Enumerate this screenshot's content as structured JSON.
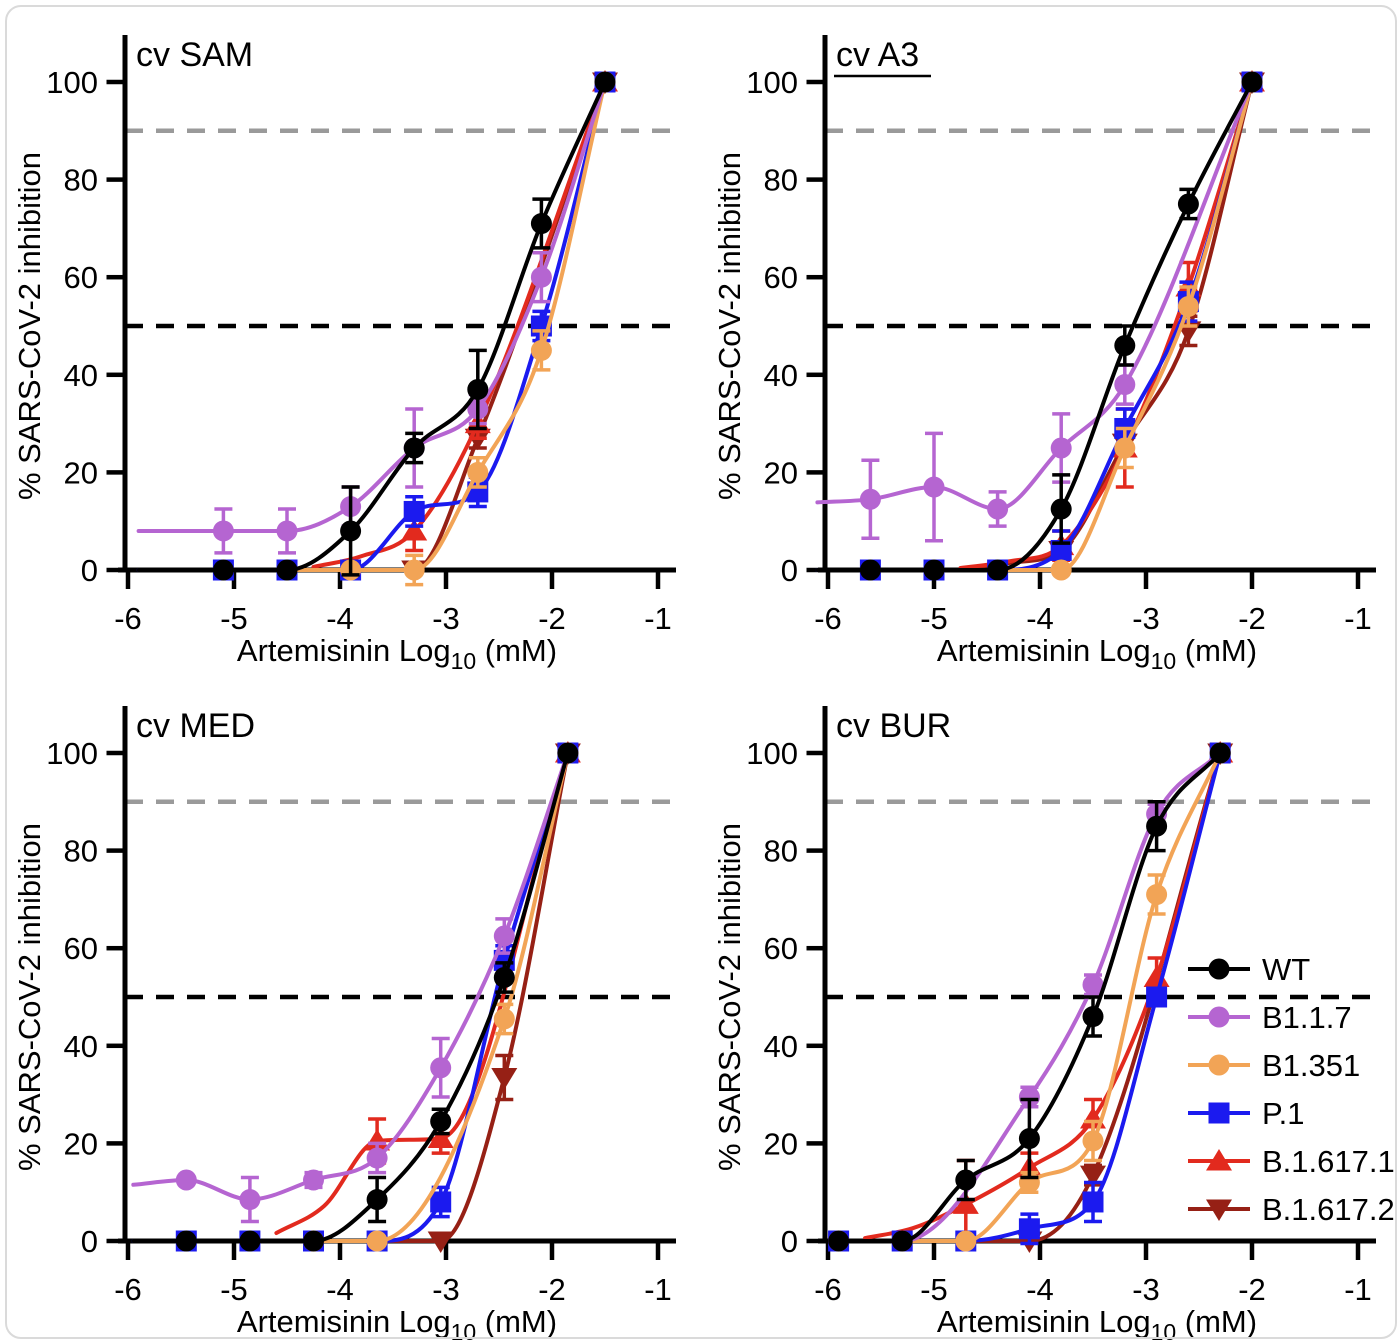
{
  "figure": {
    "background": "#ffffff",
    "frame_color": "#dadada"
  },
  "axes": {
    "x_label_main": "Artemisinin Log",
    "x_label_sub": "10",
    "x_label_unit": " (mM)",
    "y_label": "% SARS-CoV-2 inhibition",
    "x_ticks": [
      -6,
      -5,
      -4,
      -3,
      -2,
      -1
    ],
    "y_ticks": [
      0,
      20,
      40,
      60,
      80,
      100
    ],
    "x_range": [
      -6,
      -1
    ],
    "y_range": [
      0,
      107
    ],
    "grid": "off",
    "reference_lines": [
      {
        "y": 90,
        "color": "#9a9a9a",
        "style": "dashed"
      },
      {
        "y": 50,
        "color": "#000000",
        "style": "dashed"
      }
    ]
  },
  "legend": {
    "position": "inside bottom-right panel, middle right",
    "items": [
      {
        "label": "WT",
        "color": "#000000",
        "marker": "circle"
      },
      {
        "label": "B1.1.7",
        "color": "#b565d1",
        "marker": "circle"
      },
      {
        "label": "B1.351",
        "color": "#f2a456",
        "marker": "circle"
      },
      {
        "label": "P.1",
        "color": "#1b1aef",
        "marker": "square"
      },
      {
        "label": "B.1.617.1",
        "color": "#e22a1e",
        "marker": "triangle-up"
      },
      {
        "label": "B.1.617.2",
        "color": "#962015",
        "marker": "triangle-down"
      }
    ]
  },
  "chart_data": [
    {
      "type": "line",
      "title": "cv SAM",
      "title_underline": false,
      "x": [
        -5.1,
        -4.5,
        -3.9,
        -3.3,
        -2.7,
        -2.1,
        -1.5
      ],
      "series": [
        {
          "name": "WT",
          "color": "#000000",
          "marker": "circle",
          "bottom": 0,
          "values": [
            0,
            0,
            8,
            25,
            37,
            71,
            100
          ],
          "errors": [
            0,
            0,
            9,
            3,
            8,
            5,
            0
          ]
        },
        {
          "name": "B1.1.7",
          "color": "#b565d1",
          "marker": "circle",
          "bottom": 8,
          "values": [
            8,
            8,
            13,
            25,
            33,
            60,
            100
          ],
          "errors": [
            4.5,
            4.5,
            4,
            8,
            3,
            5,
            0
          ]
        },
        {
          "name": "B1.351",
          "color": "#f2a456",
          "marker": "circle",
          "bottom": 0,
          "values": [
            null,
            null,
            0,
            0,
            20,
            45,
            100
          ],
          "errors": [
            null,
            null,
            0,
            3,
            3,
            4,
            0
          ]
        },
        {
          "name": "P.1",
          "color": "#1b1aef",
          "marker": "square",
          "bottom": 0,
          "values": [
            0,
            0,
            0,
            12,
            16,
            50,
            100
          ],
          "errors": [
            0,
            0,
            0,
            3,
            3,
            3,
            0
          ]
        },
        {
          "name": "B.1.617.1",
          "color": "#e22a1e",
          "marker": "triangle-up",
          "bottom": 0,
          "values": [
            null,
            null,
            null,
            8,
            30,
            null,
            100
          ],
          "errors": [
            null,
            null,
            null,
            4,
            3,
            null,
            0
          ]
        },
        {
          "name": "B.1.617.2",
          "color": "#962015",
          "marker": "triangle-down",
          "bottom": 0,
          "values": [
            null,
            null,
            null,
            0,
            27,
            null,
            100
          ],
          "errors": [
            null,
            null,
            null,
            0,
            2,
            null,
            0
          ]
        }
      ]
    },
    {
      "type": "line",
      "title": "cv A3",
      "title_underline": true,
      "x": [
        -5.6,
        -5.0,
        -4.4,
        -3.8,
        -3.2,
        -2.6,
        -2.0
      ],
      "series": [
        {
          "name": "WT",
          "color": "#000000",
          "marker": "circle",
          "bottom": 0,
          "values": [
            0,
            0,
            0,
            12.5,
            46,
            75,
            100
          ],
          "errors": [
            0,
            0,
            0,
            7,
            4,
            3,
            0
          ]
        },
        {
          "name": "B1.1.7",
          "color": "#b565d1",
          "marker": "circle",
          "bottom": 13.5,
          "values": [
            14.5,
            17,
            12.5,
            25,
            38,
            null,
            100
          ],
          "errors": [
            8,
            11,
            3.5,
            7,
            4,
            null,
            0
          ]
        },
        {
          "name": "B1.351",
          "color": "#f2a456",
          "marker": "circle",
          "bottom": 0,
          "values": [
            null,
            null,
            null,
            0,
            25,
            54,
            100
          ],
          "errors": [
            null,
            null,
            null,
            0,
            4,
            4,
            0
          ]
        },
        {
          "name": "P.1",
          "color": "#1b1aef",
          "marker": "square",
          "bottom": 0,
          "values": [
            0,
            0,
            0,
            4,
            29,
            55,
            100
          ],
          "errors": [
            0,
            0,
            0,
            4,
            4,
            4,
            0
          ]
        },
        {
          "name": "B.1.617.1",
          "color": "#e22a1e",
          "marker": "triangle-up",
          "bottom": 0,
          "values": [
            null,
            null,
            null,
            5,
            25,
            58,
            100
          ],
          "errors": [
            null,
            null,
            null,
            3,
            8,
            5,
            0
          ]
        },
        {
          "name": "B.1.617.2",
          "color": "#962015",
          "marker": "triangle-down",
          "bottom": 0,
          "values": [
            null,
            null,
            null,
            4,
            26,
            49,
            100
          ],
          "errors": [
            null,
            null,
            null,
            0,
            0,
            3,
            0
          ]
        }
      ]
    },
    {
      "type": "line",
      "title": "cv MED",
      "title_underline": false,
      "x": [
        -5.45,
        -4.85,
        -4.25,
        -3.65,
        -3.05,
        -2.45,
        -1.85
      ],
      "series": [
        {
          "name": "WT",
          "color": "#000000",
          "marker": "circle",
          "bottom": 0,
          "values": [
            0,
            0,
            0,
            8.5,
            24.5,
            54,
            100
          ],
          "errors": [
            0,
            0,
            0,
            4.5,
            2.5,
            3,
            0
          ]
        },
        {
          "name": "B1.1.7",
          "color": "#b565d1",
          "marker": "circle",
          "bottom": 11,
          "values": [
            12.5,
            8.5,
            12.5,
            17,
            35.5,
            62.5,
            100
          ],
          "errors": [
            0,
            4.5,
            1.5,
            3,
            6,
            3.5,
            0
          ]
        },
        {
          "name": "B1.351",
          "color": "#f2a456",
          "marker": "circle",
          "bottom": 0,
          "values": [
            null,
            null,
            0,
            0,
            null,
            45.5,
            100
          ],
          "errors": [
            null,
            null,
            0,
            0,
            null,
            3,
            0
          ]
        },
        {
          "name": "P.1",
          "color": "#1b1aef",
          "marker": "square",
          "bottom": 0,
          "values": [
            0,
            0,
            0,
            0,
            8,
            57.5,
            100
          ],
          "errors": [
            0,
            0,
            0,
            0,
            3,
            3,
            0
          ]
        },
        {
          "name": "B.1.617.1",
          "color": "#e22a1e",
          "marker": "triangle-up",
          "bottom": 0,
          "values": [
            null,
            null,
            null,
            20.5,
            21,
            null,
            100
          ],
          "errors": [
            null,
            null,
            null,
            4.5,
            3,
            null,
            0
          ]
        },
        {
          "name": "B.1.617.2",
          "color": "#962015",
          "marker": "triangle-down",
          "bottom": 0,
          "values": [
            null,
            null,
            null,
            null,
            0,
            33.5,
            100
          ],
          "errors": [
            null,
            null,
            null,
            null,
            0,
            4.5,
            0
          ]
        }
      ]
    },
    {
      "type": "line",
      "title": "cv BUR",
      "title_underline": false,
      "x": [
        -5.9,
        -5.3,
        -4.7,
        -4.1,
        -3.5,
        -2.9,
        -2.3
      ],
      "series": [
        {
          "name": "WT",
          "color": "#000000",
          "marker": "circle",
          "bottom": 0,
          "values": [
            0,
            0,
            12.5,
            21,
            46,
            85,
            100
          ],
          "errors": [
            0,
            0,
            4,
            8,
            4,
            5,
            0
          ]
        },
        {
          "name": "B1.1.7",
          "color": "#b565d1",
          "marker": "circle",
          "bottom": 0,
          "values": [
            0,
            0,
            null,
            29.5,
            52.5,
            87.5,
            100
          ],
          "errors": [
            0,
            0,
            null,
            2,
            2,
            2,
            0
          ]
        },
        {
          "name": "B1.351",
          "color": "#f2a456",
          "marker": "circle",
          "bottom": 0,
          "values": [
            null,
            null,
            0,
            12,
            20.5,
            71,
            100
          ],
          "errors": [
            null,
            null,
            0,
            2,
            4,
            4,
            0
          ]
        },
        {
          "name": "P.1",
          "color": "#1b1aef",
          "marker": "square",
          "bottom": 0,
          "values": [
            0,
            0,
            0,
            2.5,
            8,
            50,
            100
          ],
          "errors": [
            0,
            0,
            0,
            3,
            4,
            0,
            0
          ]
        },
        {
          "name": "B.1.617.1",
          "color": "#e22a1e",
          "marker": "triangle-up",
          "bottom": 0,
          "values": [
            null,
            null,
            7.5,
            15,
            25,
            54,
            100
          ],
          "errors": [
            null,
            null,
            9,
            3,
            4,
            4,
            0
          ]
        },
        {
          "name": "B.1.617.2",
          "color": "#962015",
          "marker": "triangle-down",
          "bottom": 0,
          "values": [
            null,
            null,
            null,
            0,
            13.5,
            null,
            100
          ],
          "errors": [
            null,
            null,
            null,
            0,
            2,
            null,
            0
          ]
        }
      ]
    }
  ]
}
